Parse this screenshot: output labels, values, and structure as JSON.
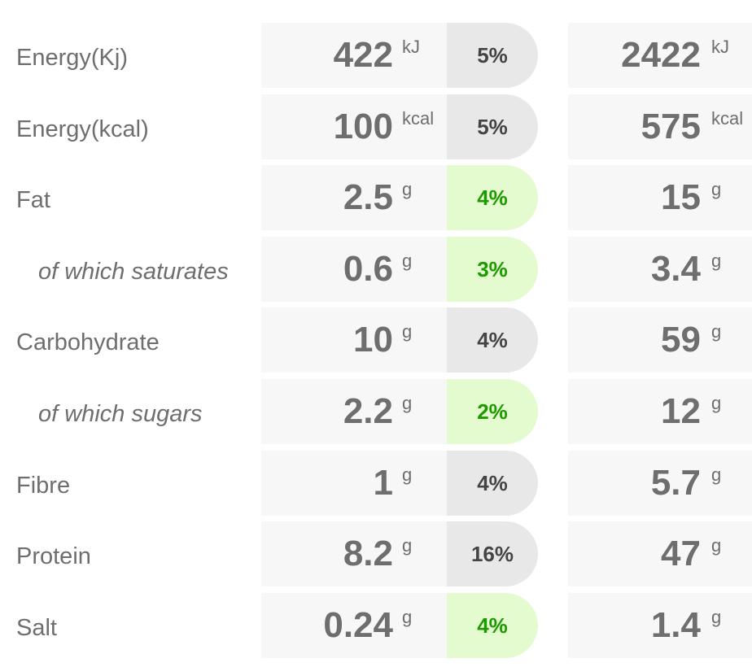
{
  "colors": {
    "cell_bg": "#f7f7f7",
    "pct_neutral_bg": "#e8e8e8",
    "pct_green_bg": "#e4fbd0",
    "pct_green_text": "#1e9a00",
    "text_grey": "#6e6e6e"
  },
  "rows": [
    {
      "label": "Energy(Kj)",
      "sub": false,
      "per100_value": "422",
      "per100_unit": "kJ",
      "pct": "5%",
      "pct_level": "neutral",
      "pack_value": "2422",
      "pack_unit": "kJ"
    },
    {
      "label": "Energy(kcal)",
      "sub": false,
      "per100_value": "100",
      "per100_unit": "kcal",
      "pct": "5%",
      "pct_level": "neutral",
      "pack_value": "575",
      "pack_unit": "kcal"
    },
    {
      "label": "Fat",
      "sub": false,
      "per100_value": "2.5",
      "per100_unit": "g",
      "pct": "4%",
      "pct_level": "green",
      "pack_value": "15",
      "pack_unit": "g"
    },
    {
      "label": "of which saturates",
      "sub": true,
      "per100_value": "0.6",
      "per100_unit": "g",
      "pct": "3%",
      "pct_level": "green",
      "pack_value": "3.4",
      "pack_unit": "g"
    },
    {
      "label": "Carbohydrate",
      "sub": false,
      "per100_value": "10",
      "per100_unit": "g",
      "pct": "4%",
      "pct_level": "neutral",
      "pack_value": "59",
      "pack_unit": "g"
    },
    {
      "label": "of which sugars",
      "sub": true,
      "per100_value": "2.2",
      "per100_unit": "g",
      "pct": "2%",
      "pct_level": "green",
      "pack_value": "12",
      "pack_unit": "g"
    },
    {
      "label": "Fibre",
      "sub": false,
      "per100_value": "1",
      "per100_unit": "g",
      "pct": "4%",
      "pct_level": "neutral",
      "pack_value": "5.7",
      "pack_unit": "g"
    },
    {
      "label": "Protein",
      "sub": false,
      "per100_value": "8.2",
      "per100_unit": "g",
      "pct": "16%",
      "pct_level": "neutral",
      "pack_value": "47",
      "pack_unit": "g"
    },
    {
      "label": "Salt",
      "sub": false,
      "per100_value": "0.24",
      "per100_unit": "g",
      "pct": "4%",
      "pct_level": "green",
      "pack_value": "1.4",
      "pack_unit": "g"
    }
  ]
}
